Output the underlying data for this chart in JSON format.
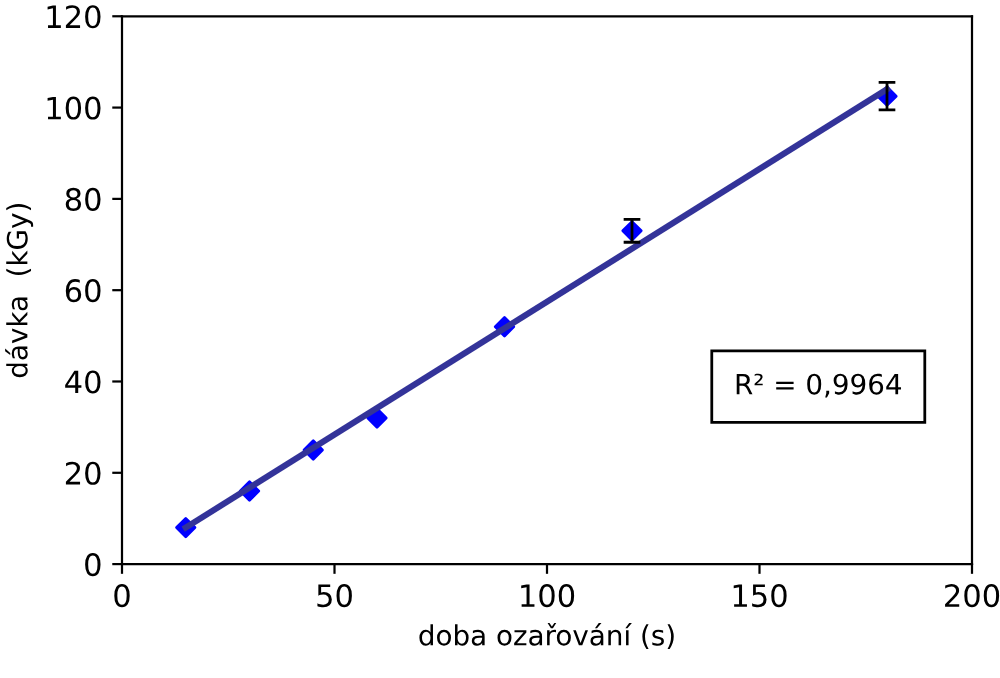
{
  "chart_data": {
    "type": "scatter",
    "xlabel": "doba ozařování (s)",
    "ylabel": "dávka  (kGy)",
    "xlim": [
      0,
      200
    ],
    "ylim": [
      0,
      120
    ],
    "xticks": [
      0,
      50,
      100,
      150,
      200
    ],
    "yticks": [
      0,
      20,
      40,
      60,
      80,
      100,
      120
    ],
    "grid": false,
    "series": [
      {
        "color": "#0000ff",
        "marker": "diamond",
        "x": [
          15,
          30,
          45,
          60,
          90,
          120,
          180
        ],
        "values": [
          8,
          16,
          25,
          32,
          52,
          73,
          102.5
        ],
        "errors": [
          null,
          null,
          null,
          null,
          null,
          2.5,
          3
        ]
      },
      {
        "type": "line",
        "color": "#333399",
        "marker": "none",
        "line_style": "solid",
        "x": [
          15,
          180
        ],
        "values": [
          8,
          104
        ]
      }
    ],
    "annotations": [
      "R² = 0,9964"
    ]
  }
}
